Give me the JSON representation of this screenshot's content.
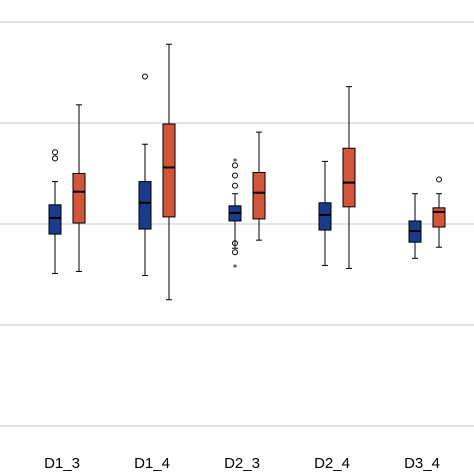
{
  "chart_data": {
    "type": "boxplot",
    "title": "",
    "xlabel": "",
    "ylabel": "",
    "grid": true,
    "ylim": [
      -2.25,
      2.25
    ],
    "gridlines": [
      -2,
      -1,
      0,
      1,
      2
    ],
    "categories": [
      "D1_3",
      "D1_4",
      "D2_3",
      "D2_4",
      "D3_4"
    ],
    "series": [
      {
        "color": "#1a3a8a",
        "boxes": [
          {
            "min": -0.49,
            "q1": -0.1,
            "median": 0.06,
            "q3": 0.19,
            "max": 0.42,
            "outliers": [
              {
                "v": 0.71,
                "marker": "circle"
              },
              {
                "v": 0.65,
                "marker": "circle"
              }
            ]
          },
          {
            "min": -0.51,
            "q1": -0.05,
            "median": 0.21,
            "q3": 0.42,
            "max": 0.79,
            "outliers": [
              {
                "v": 1.46,
                "marker": "circle"
              }
            ]
          },
          {
            "min": -0.24,
            "q1": 0.03,
            "median": 0.11,
            "q3": 0.18,
            "max": 0.3,
            "outliers": [
              {
                "v": 0.48,
                "marker": "circle"
              },
              {
                "v": 0.58,
                "marker": "circle"
              },
              {
                "v": 0.62,
                "marker": "star"
              },
              {
                "v": 0.38,
                "marker": "circle"
              },
              {
                "v": -0.19,
                "marker": "circle"
              },
              {
                "v": -0.28,
                "marker": "circle"
              },
              {
                "v": -0.43,
                "marker": "star"
              }
            ]
          },
          {
            "min": -0.41,
            "q1": -0.06,
            "median": 0.09,
            "q3": 0.21,
            "max": 0.62,
            "outliers": []
          },
          {
            "min": -0.34,
            "q1": -0.18,
            "median": -0.07,
            "q3": 0.03,
            "max": 0.3,
            "outliers": []
          }
        ]
      },
      {
        "color": "#d4563a",
        "boxes": [
          {
            "min": -0.47,
            "q1": 0.01,
            "median": 0.32,
            "q3": 0.5,
            "max": 1.18,
            "outliers": []
          },
          {
            "min": -0.75,
            "q1": 0.07,
            "median": 0.56,
            "q3": 0.99,
            "max": 1.78,
            "outliers": []
          },
          {
            "min": -0.16,
            "q1": 0.05,
            "median": 0.31,
            "q3": 0.51,
            "max": 0.91,
            "outliers": []
          },
          {
            "min": -0.44,
            "q1": 0.17,
            "median": 0.41,
            "q3": 0.75,
            "max": 1.36,
            "outliers": []
          },
          {
            "min": -0.23,
            "q1": -0.03,
            "median": 0.12,
            "q3": 0.16,
            "max": 0.3,
            "outliers": [
              {
                "v": 0.44,
                "marker": "circle"
              }
            ]
          }
        ]
      }
    ]
  }
}
